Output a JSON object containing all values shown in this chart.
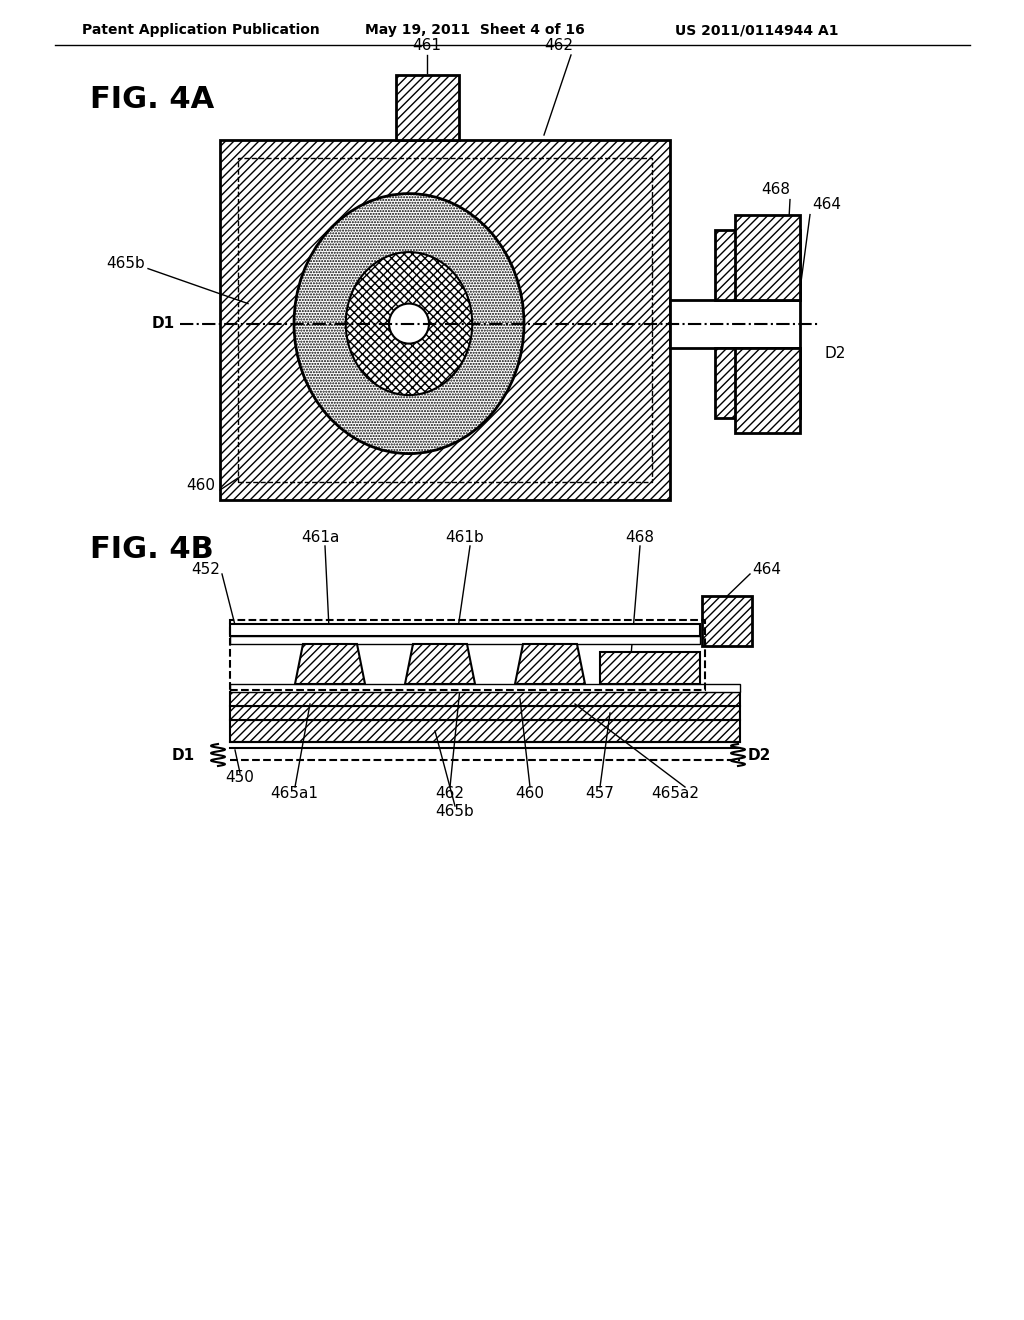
{
  "bg_color": "#ffffff",
  "header_left": "Patent Application Publication",
  "header_mid": "May 19, 2011  Sheet 4 of 16",
  "header_right": "US 2011/0114944 A1",
  "fig4a_label": "FIG. 4A",
  "fig4b_label": "FIG. 4B",
  "line_color": "#000000"
}
